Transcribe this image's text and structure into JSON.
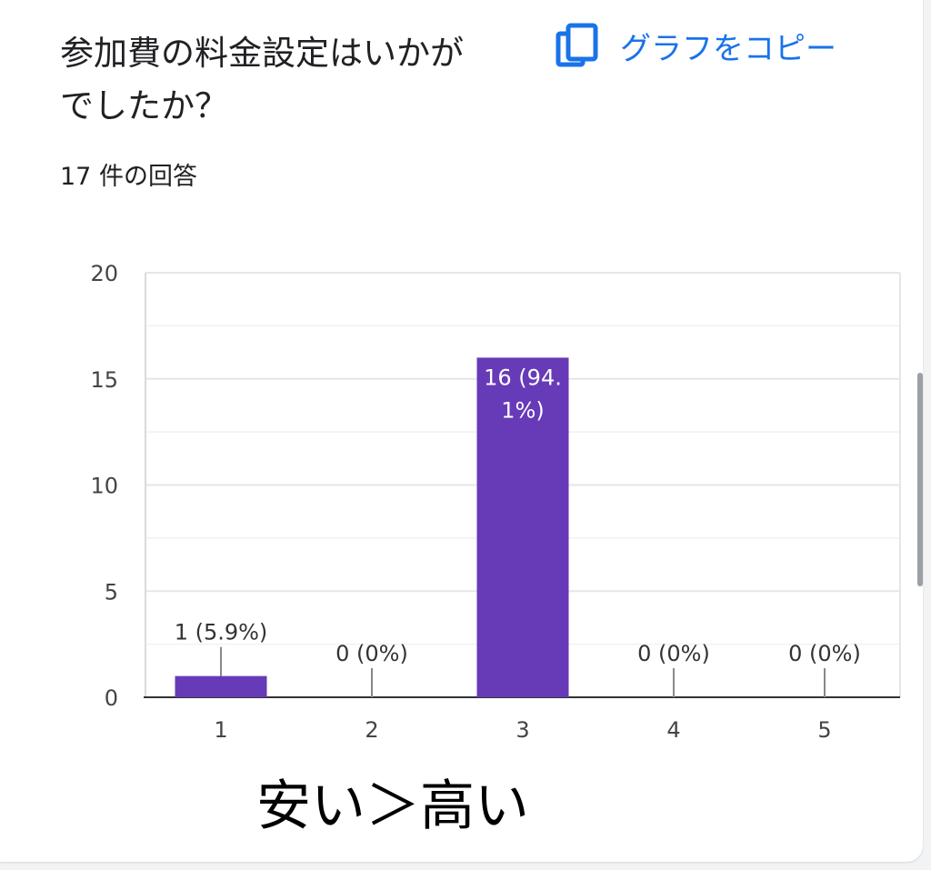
{
  "card": {
    "title": "参加費の料金設定はいかがでしたか？",
    "copy_label": "グラフをコピー",
    "copy_icon": "copy-icon",
    "response_count": "17 件の回答"
  },
  "annotation": "安い＞高い",
  "colors": {
    "bar": "#673ab7",
    "accent": "#1a73e8"
  },
  "chart_data": {
    "type": "bar",
    "categories": [
      "1",
      "2",
      "3",
      "4",
      "5"
    ],
    "values": [
      1,
      0,
      16,
      0,
      0
    ],
    "data_labels": [
      "1 (5.9%)",
      "0 (0%)",
      "16 (94.1%)",
      "0 (0%)",
      "0 (0%)"
    ],
    "y_ticks": [
      "0",
      "5",
      "10",
      "15",
      "20"
    ],
    "ylim": [
      0,
      20
    ],
    "title": "",
    "xlabel": "",
    "ylabel": "",
    "grid": true
  }
}
